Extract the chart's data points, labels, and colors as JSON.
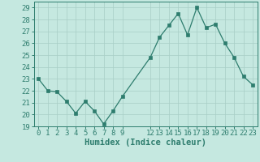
{
  "x": [
    0,
    1,
    2,
    3,
    4,
    5,
    6,
    7,
    8,
    9,
    12,
    13,
    14,
    15,
    16,
    17,
    18,
    19,
    20,
    21,
    22,
    23
  ],
  "y": [
    23,
    22,
    21.9,
    21.1,
    20.1,
    21.1,
    20.3,
    19.2,
    20.3,
    21.5,
    24.8,
    26.5,
    27.5,
    28.5,
    26.7,
    29,
    27.3,
    27.6,
    26,
    24.8,
    23.2,
    22.5
  ],
  "line_color": "#2e7d6e",
  "marker_color": "#2e7d6e",
  "bg_color": "#c5e8e0",
  "grid_color": "#a8cec6",
  "xlabel": "Humidex (Indice chaleur)",
  "xlim": [
    -0.5,
    23.5
  ],
  "ylim": [
    19,
    29.5
  ],
  "yticks": [
    19,
    20,
    21,
    22,
    23,
    24,
    25,
    26,
    27,
    28,
    29
  ],
  "xticks": [
    0,
    1,
    2,
    3,
    4,
    5,
    6,
    7,
    8,
    9,
    12,
    13,
    14,
    15,
    16,
    17,
    18,
    19,
    20,
    21,
    22,
    23
  ],
  "tick_label_color": "#2e7d6e",
  "axis_color": "#2e7d6e",
  "tick_fontsize": 6.5,
  "xlabel_fontsize": 7.5
}
